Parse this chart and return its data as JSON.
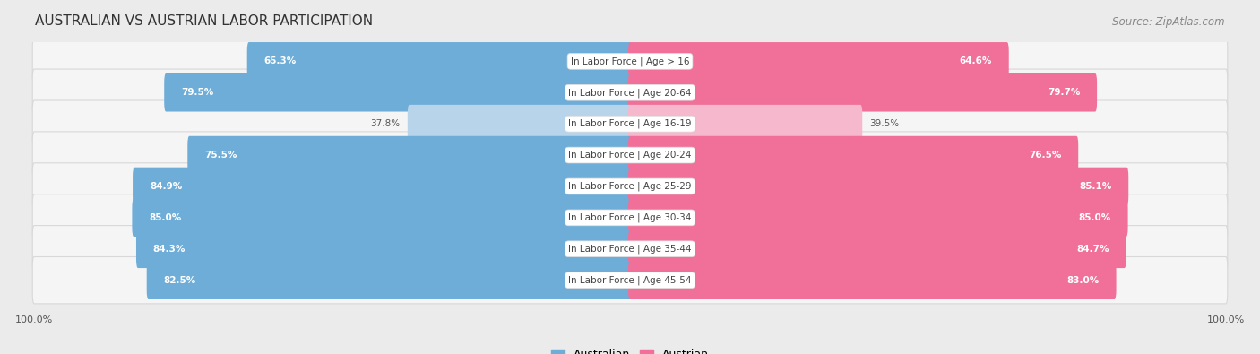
{
  "title": "AUSTRALIAN VS AUSTRIAN LABOR PARTICIPATION",
  "source": "Source: ZipAtlas.com",
  "categories": [
    "In Labor Force | Age > 16",
    "In Labor Force | Age 20-64",
    "In Labor Force | Age 16-19",
    "In Labor Force | Age 20-24",
    "In Labor Force | Age 25-29",
    "In Labor Force | Age 30-34",
    "In Labor Force | Age 35-44",
    "In Labor Force | Age 45-54"
  ],
  "australian": [
    65.3,
    79.5,
    37.8,
    75.5,
    84.9,
    85.0,
    84.3,
    82.5
  ],
  "austrian": [
    64.6,
    79.7,
    39.5,
    76.5,
    85.1,
    85.0,
    84.7,
    83.0
  ],
  "australian_color": "#6dadd8",
  "austrian_color": "#f07099",
  "australian_color_light": "#b8d4ea",
  "austrian_color_light": "#f5b8cc",
  "bg_color": "#ebebeb",
  "row_bg_color": "#f5f5f5",
  "row_border_color": "#d8d8d8",
  "title_fontsize": 11,
  "source_fontsize": 8.5,
  "label_fontsize": 7.5,
  "value_fontsize": 7.5,
  "legend_australian": "Australian",
  "legend_austrian": "Austrian"
}
